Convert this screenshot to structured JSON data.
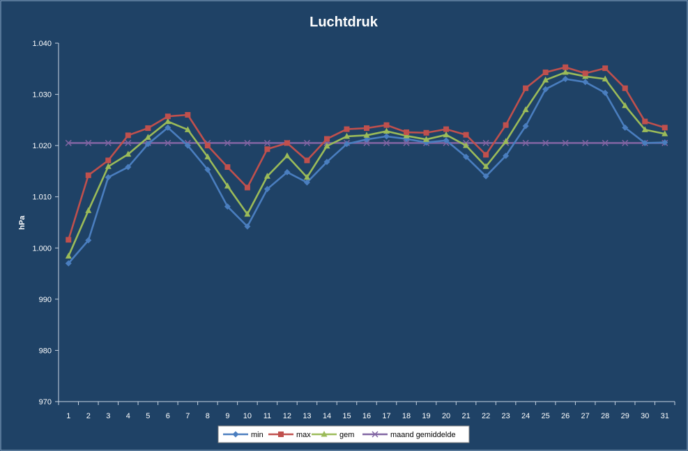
{
  "chart_data": {
    "type": "line",
    "title": "Luchtdruk",
    "ylabel": "hPa",
    "xlabel": "",
    "ylim": [
      970,
      1040
    ],
    "yticks": [
      970,
      980,
      990,
      1000,
      1010,
      1020,
      1030,
      1040
    ],
    "ytick_labels": [
      "970",
      "980",
      "990",
      "1.000",
      "1.010",
      "1.020",
      "1.030",
      "1.040"
    ],
    "categories": [
      "1",
      "2",
      "3",
      "4",
      "5",
      "6",
      "7",
      "8",
      "9",
      "10",
      "11",
      "12",
      "13",
      "14",
      "15",
      "16",
      "17",
      "18",
      "19",
      "20",
      "21",
      "22",
      "23",
      "24",
      "25",
      "26",
      "27",
      "28",
      "29",
      "30",
      "31"
    ],
    "grid": false,
    "legend_position": "bottom",
    "series": [
      {
        "name": "min",
        "color": "#4a7ebf",
        "marker": "diamond",
        "values": [
          997.0,
          1001.5,
          1013.8,
          1015.8,
          1020.3,
          1023.5,
          1020.0,
          1015.3,
          1008.1,
          1004.2,
          1011.5,
          1014.8,
          1012.8,
          1016.8,
          1020.3,
          1021.2,
          1021.8,
          1021.3,
          1020.6,
          1021.0,
          1017.8,
          1014.0,
          1018.0,
          1023.8,
          1031.0,
          1033.0,
          1032.4,
          1030.3,
          1023.5,
          1020.5,
          1020.6
        ]
      },
      {
        "name": "max",
        "color": "#c0504d",
        "marker": "square",
        "values": [
          1001.6,
          1014.2,
          1017.1,
          1022.0,
          1023.4,
          1025.7,
          1026.0,
          1020.0,
          1015.8,
          1011.8,
          1019.3,
          1020.5,
          1017.1,
          1021.3,
          1023.2,
          1023.4,
          1024.0,
          1022.6,
          1022.5,
          1023.2,
          1022.1,
          1018.2,
          1024.0,
          1031.2,
          1034.3,
          1035.3,
          1034.1,
          1035.1,
          1031.2,
          1024.7,
          1023.5
        ]
      },
      {
        "name": "gem",
        "color": "#9bbb59",
        "marker": "triangle",
        "values": [
          998.4,
          1007.3,
          1015.9,
          1018.3,
          1021.6,
          1024.7,
          1023.1,
          1017.8,
          1012.1,
          1006.6,
          1014.0,
          1018.0,
          1013.8,
          1019.9,
          1021.8,
          1022.0,
          1022.8,
          1021.9,
          1021.2,
          1022.1,
          1020.0,
          1015.9,
          1020.8,
          1027.0,
          1032.8,
          1034.3,
          1033.5,
          1033.0,
          1027.8,
          1023.1,
          1022.3
        ]
      },
      {
        "name": "maand gemiddelde",
        "color": "#8064a2",
        "marker": "x",
        "values": [
          1020.5,
          1020.5,
          1020.5,
          1020.5,
          1020.5,
          1020.5,
          1020.5,
          1020.5,
          1020.5,
          1020.5,
          1020.5,
          1020.5,
          1020.5,
          1020.5,
          1020.5,
          1020.5,
          1020.5,
          1020.5,
          1020.5,
          1020.5,
          1020.5,
          1020.5,
          1020.5,
          1020.5,
          1020.5,
          1020.5,
          1020.5,
          1020.5,
          1020.5,
          1020.5,
          1020.5
        ]
      }
    ]
  }
}
